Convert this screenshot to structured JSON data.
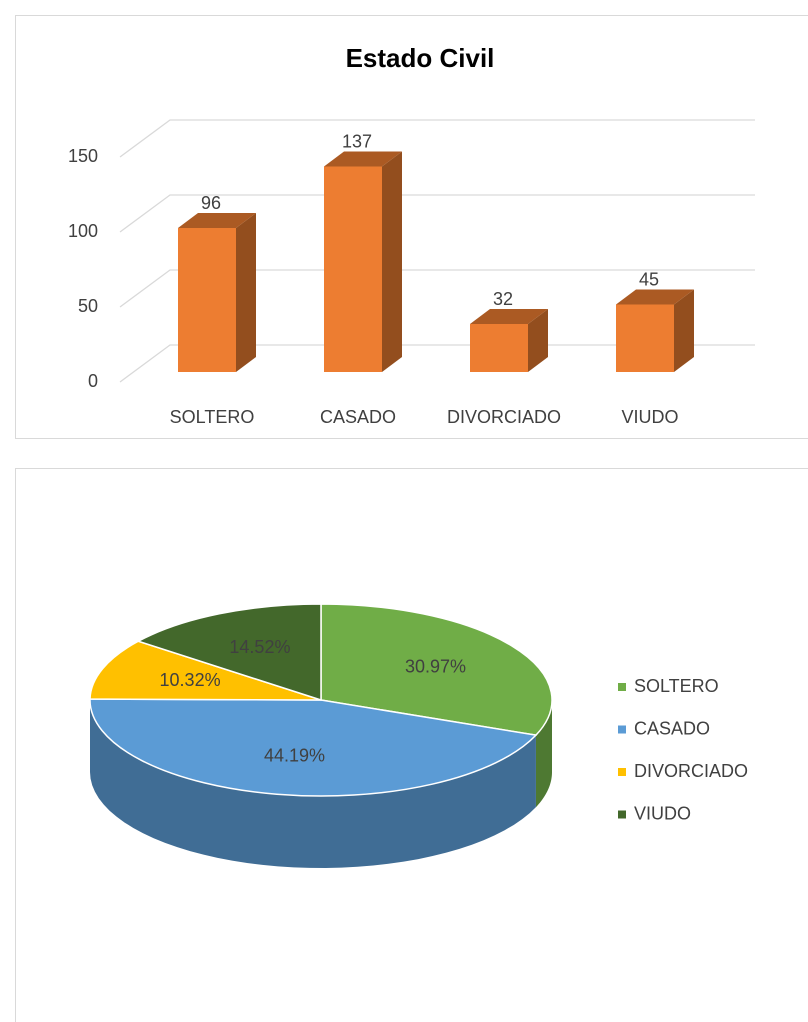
{
  "chart_data": [
    {
      "type": "bar3d",
      "title": "Estado Civil",
      "categories": [
        "SOLTERO",
        "CASADO",
        "DIVORCIADO",
        "VIUDO"
      ],
      "values": [
        96,
        137,
        32,
        45
      ],
      "color": "#ed7d31",
      "ylim": [
        0,
        150
      ],
      "yticks": [
        0,
        50,
        100,
        150
      ],
      "grid": true
    },
    {
      "type": "pie3d",
      "categories": [
        "SOLTERO",
        "CASADO",
        "DIVORCIADO",
        "VIUDO"
      ],
      "values": [
        30.97,
        44.19,
        10.32,
        14.52
      ],
      "value_labels": [
        "30.97%",
        "44.19%",
        "10.32%",
        "14.52%"
      ],
      "colors": [
        "#70ad47",
        "#5b9bd5",
        "#ffc000",
        "#43682b"
      ],
      "legend": "right"
    }
  ]
}
